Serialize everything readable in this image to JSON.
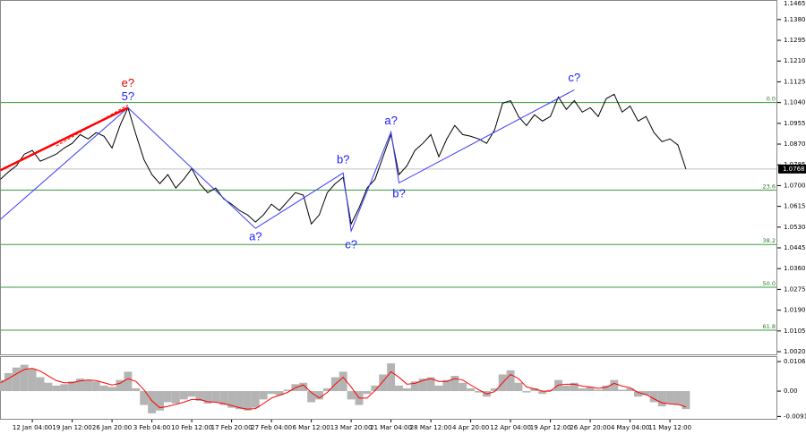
{
  "chart_data": [
    {
      "type": "line",
      "color": "#000000",
      "categories": [
        null,
        null,
        null,
        null,
        "12 Jan 04:00",
        null,
        null,
        null,
        null,
        "19 Jan 12:00",
        null,
        null,
        null,
        null,
        "26 Jan 20:00",
        null,
        null,
        null,
        null,
        "3 Feb 04:00",
        null,
        null,
        null,
        null,
        "10 Feb 12:00",
        null,
        null,
        null,
        null,
        "17 Feb 20:00",
        null,
        null,
        null,
        null,
        "27 Feb 04:00",
        null,
        null,
        null,
        null,
        "6 Mar 12:00",
        null,
        null,
        null,
        null,
        "13 Mar 20:00",
        null,
        null,
        null,
        null,
        "21 Mar 04:00",
        null,
        null,
        null,
        null,
        "28 Mar 12:00",
        null,
        null,
        null,
        null,
        "4 Apr 20:00",
        null,
        null,
        null,
        null,
        "12 Apr 04:00",
        null,
        null,
        null,
        null,
        "19 Apr 12:00",
        null,
        null,
        null,
        null,
        "26 Apr 20:00",
        null,
        null,
        null,
        null,
        "4 May 04:00",
        null,
        null,
        null,
        null,
        "11 May 12:00",
        null,
        null
      ],
      "values": [
        1.0726,
        1.0756,
        1.0781,
        1.0829,
        1.0844,
        1.08,
        1.0814,
        1.0829,
        1.0854,
        1.0873,
        1.0909,
        1.0891,
        1.0917,
        1.0902,
        1.0854,
        1.0946,
        1.1019,
        1.0909,
        1.0807,
        1.0745,
        1.0708,
        1.0745,
        1.069,
        1.0726,
        1.077,
        1.0708,
        1.0671,
        1.069,
        1.0646,
        1.0624,
        1.0598,
        1.058,
        1.0551,
        1.058,
        1.0624,
        1.0598,
        1.0635,
        1.0671,
        1.0661,
        1.0543,
        1.058,
        1.0671,
        1.0708,
        1.0734,
        1.0543,
        1.0609,
        1.069,
        1.0726,
        1.0818,
        1.0909,
        1.0745,
        1.0781,
        1.0844,
        1.0873,
        1.0909,
        1.0818,
        1.0891,
        1.0946,
        1.0909,
        1.0902,
        1.0891,
        1.0873,
        1.0928,
        1.1037,
        1.1048,
        1.0983,
        1.0946,
        1.099,
        1.0964,
        1.0983,
        1.1063,
        1.1012,
        1.1048,
        1.1001,
        1.1019,
        1.0983,
        1.1056,
        1.1074,
        1.1001,
        1.1026,
        1.0964,
        1.0983,
        1.0917,
        1.088,
        1.0891,
        1.0866,
        1.0768
      ],
      "ylim": [
        1.0009,
        1.146
      ],
      "yticks": [
        {
          "value": 1.1465,
          "label": "1.1465"
        },
        {
          "value": 1.138,
          "label": "1.1380"
        },
        1.1295,
        {
          "value": 1.121,
          "label": "1.1210"
        },
        1.1125,
        {
          "value": 1.104,
          "label": "1.1040"
        },
        1.0955,
        {
          "value": 1.087,
          "label": "1.0870"
        },
        1.0785,
        {
          "value": 1.07,
          "label": "1.0700"
        },
        1.0615,
        {
          "value": 1.053,
          "label": "1.0530"
        },
        1.0445,
        {
          "value": 1.036,
          "label": "1.0360"
        },
        1.0275,
        {
          "value": 1.019,
          "label": "1.0190"
        },
        1.0105,
        {
          "value": 1.002,
          "label": "1.0020"
        }
      ],
      "last_price": 1.0768,
      "fib_levels": [
        {
          "label": "0.0",
          "price": 1.104
        },
        {
          "label": "23.6",
          "price": 1.0682
        },
        {
          "label": "38.2",
          "price": 1.0459
        },
        {
          "label": "50.0",
          "price": 1.0284
        },
        {
          "label": "61.8",
          "price": 1.0108
        }
      ],
      "wave_lines": [
        {
          "color": "#3a3aff",
          "width": 1,
          "points": [
            [
              0,
              1.0562
            ],
            [
              16,
              1.1019
            ],
            [
              32,
              1.0525
            ],
            [
              43,
              1.0752
            ],
            [
              44,
              1.0514
            ],
            [
              49,
              1.092
            ],
            [
              50,
              1.0711
            ],
            [
              72,
              1.1092
            ]
          ]
        },
        {
          "color": "#ff0000",
          "width": 2.5,
          "points": [
            [
              0,
              1.0763
            ],
            [
              16,
              1.1019
            ]
          ]
        },
        {
          "color": "#ff0000",
          "width": 1,
          "dash": true,
          "points": [
            [
              7,
              1.0862
            ],
            [
              16,
              1.103
            ]
          ]
        }
      ],
      "wave_labels": [
        {
          "text": "e?",
          "index": 16,
          "price": 1.1118,
          "color": "#e00000"
        },
        {
          "text": "5?",
          "index": 16,
          "price": 1.1063,
          "color": "#1a1aff"
        },
        {
          "text": "a?",
          "index": 32,
          "price": 1.0488,
          "color": "#1a1aff"
        },
        {
          "text": "b?",
          "index": 43,
          "price": 1.0803,
          "color": "#1a1aff"
        },
        {
          "text": "c?",
          "index": 44,
          "price": 1.0455,
          "color": "#1a1aff"
        },
        {
          "text": "a?",
          "index": 49,
          "price": 1.0964,
          "color": "#1a1aff"
        },
        {
          "text": "b?",
          "index": 50,
          "price": 1.0664,
          "color": "#1a1aff"
        },
        {
          "text": "c?",
          "index": 72,
          "price": 1.114,
          "color": "#1a1aff"
        }
      ]
    },
    {
      "type": "oscillator",
      "color": "#b4b4b4",
      "signal_color": "#ff0000",
      "values": [
        0.004,
        0.0065,
        0.0085,
        0.0095,
        0.008,
        0.005,
        0.003,
        0.002,
        0.0025,
        0.0035,
        0.0045,
        0.004,
        0.0035,
        0.002,
        0.0015,
        0.004,
        0.007,
        0.001,
        -0.005,
        -0.008,
        -0.007,
        -0.004,
        -0.0045,
        -0.003,
        -0.002,
        -0.0035,
        -0.0045,
        -0.004,
        -0.005,
        -0.006,
        -0.0065,
        -0.007,
        -0.006,
        -0.003,
        -0.001,
        -0.0015,
        0.0005,
        0.0025,
        0.003,
        -0.004,
        -0.003,
        0.001,
        0.005,
        0.007,
        -0.003,
        -0.005,
        -0.001,
        0.002,
        0.006,
        0.01,
        0.002,
        0.001,
        0.0035,
        0.0045,
        0.005,
        0.002,
        0.004,
        0.0055,
        0.003,
        0.001,
        -0.0005,
        -0.002,
        0.001,
        0.006,
        0.0075,
        0.003,
        -0.0005,
        0.001,
        -0.001,
        0.0005,
        0.004,
        0.002,
        0.003,
        0.001,
        0.0015,
        0.0005,
        0.002,
        0.004,
        0.0005,
        0.001,
        -0.002,
        -0.0015,
        -0.004,
        -0.0055,
        -0.0045,
        -0.005,
        -0.0065
      ],
      "signal": [
        0.003,
        0.0045,
        0.0062,
        0.0078,
        0.0082,
        0.0072,
        0.0055,
        0.0038,
        0.003,
        0.003,
        0.0037,
        0.004,
        0.0038,
        0.003,
        0.0022,
        0.0028,
        0.0045,
        0.0035,
        0.0005,
        -0.0035,
        -0.006,
        -0.0055,
        -0.0048,
        -0.004,
        -0.003,
        -0.003,
        -0.0038,
        -0.004,
        -0.0045,
        -0.0052,
        -0.006,
        -0.0065,
        -0.0063,
        -0.0045,
        -0.0025,
        -0.0015,
        -0.0005,
        0.0012,
        0.0022,
        -0.0005,
        -0.0025,
        -0.0005,
        0.0025,
        0.005,
        0.0015,
        -0.0025,
        -0.0025,
        0.0002,
        0.0035,
        0.007,
        0.005,
        0.0025,
        0.0028,
        0.0038,
        0.0045,
        0.0035,
        0.0035,
        0.0045,
        0.004,
        0.0022,
        0.0005,
        -0.001,
        -0.0002,
        0.003,
        0.006,
        0.0045,
        0.0015,
        0.0008,
        0,
        0,
        0.0022,
        0.0025,
        0.0025,
        0.0018,
        0.0015,
        0.001,
        0.0014,
        0.0028,
        0.0018,
        0.0012,
        -0.0005,
        -0.0012,
        -0.0028,
        -0.0042,
        -0.0046,
        -0.0048,
        -0.0057
      ],
      "ylim": [
        -0.0103,
        0.0126
      ],
      "yticks": [
        0.01065,
        {
          "value": 0,
          "label": "0.00"
        },
        -0.00913
      ]
    }
  ]
}
